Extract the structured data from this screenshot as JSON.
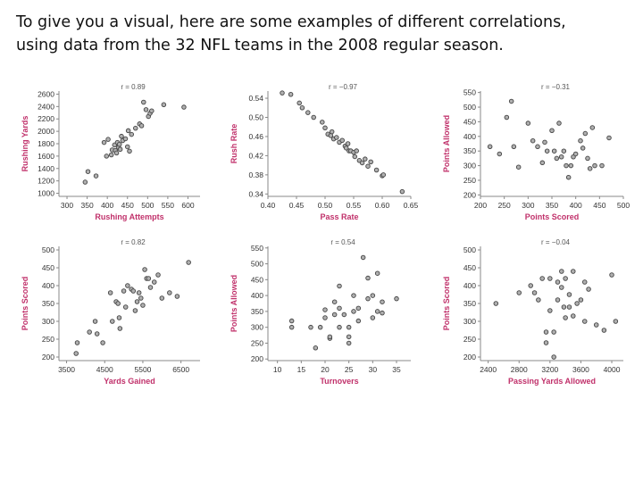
{
  "slide": {
    "intro_line1": "To give you a visual, here are some examples of different correlations,",
    "intro_line2": "using data from the 32 NFL teams in the 2008 regular season."
  },
  "colors": {
    "axis_label": "#c0306a",
    "tick": "#333333",
    "point_fill": "#b0b0b0",
    "point_stroke": "#444444"
  },
  "chart_data": [
    {
      "type": "scatter",
      "annotation": "r = 0.89",
      "xlabel": "Rushing Attempts",
      "ylabel": "Rushing Yards",
      "xlim": [
        280,
        630
      ],
      "ylim": [
        950,
        2650
      ],
      "xticks": [
        "300",
        "350",
        "400",
        "450",
        "500",
        "550",
        "600"
      ],
      "yticks": [
        "1000",
        "1200",
        "1400",
        "1600",
        "1800",
        "2000",
        "2200",
        "2400",
        "2600"
      ],
      "x": [
        345,
        352,
        372,
        392,
        398,
        402,
        410,
        412,
        418,
        420,
        423,
        425,
        428,
        430,
        432,
        435,
        438,
        445,
        450,
        452,
        455,
        460,
        470,
        480,
        485,
        490,
        496,
        502,
        506,
        510,
        540,
        590
      ],
      "y": [
        1180,
        1350,
        1280,
        1820,
        1600,
        1870,
        1620,
        1700,
        1780,
        1690,
        1650,
        1820,
        1740,
        1790,
        1710,
        1920,
        1850,
        1880,
        1750,
        2010,
        1680,
        1950,
        2050,
        2120,
        2090,
        2470,
        2350,
        2240,
        2290,
        2330,
        2430,
        2390
      ]
    },
    {
      "type": "scatter",
      "annotation": "r = −0.97",
      "xlabel": "Pass Rate",
      "ylabel": "Rush Rate",
      "xlim": [
        0.4,
        0.65
      ],
      "ylim": [
        0.335,
        0.555
      ],
      "xticks": [
        "0.40",
        "0.45",
        "0.50",
        "0.55",
        "0.60",
        "0.65"
      ],
      "yticks": [
        "0.34",
        "0.38",
        "0.42",
        "0.46",
        "0.50",
        "0.54"
      ],
      "x": [
        0.425,
        0.44,
        0.455,
        0.46,
        0.47,
        0.48,
        0.495,
        0.5,
        0.505,
        0.51,
        0.512,
        0.515,
        0.52,
        0.525,
        0.53,
        0.535,
        0.537,
        0.54,
        0.542,
        0.545,
        0.55,
        0.552,
        0.555,
        0.56,
        0.565,
        0.57,
        0.575,
        0.58,
        0.59,
        0.6,
        0.602,
        0.635
      ],
      "y": [
        0.551,
        0.548,
        0.53,
        0.52,
        0.51,
        0.5,
        0.49,
        0.478,
        0.465,
        0.462,
        0.47,
        0.455,
        0.458,
        0.448,
        0.452,
        0.44,
        0.436,
        0.445,
        0.43,
        0.43,
        0.427,
        0.418,
        0.43,
        0.41,
        0.405,
        0.413,
        0.398,
        0.407,
        0.39,
        0.378,
        0.38,
        0.345
      ]
    },
    {
      "type": "scatter",
      "annotation": "r = −0.31",
      "xlabel": "Points Scored",
      "ylabel": "Points Allowed",
      "xlim": [
        200,
        500
      ],
      "ylim": [
        195,
        555
      ],
      "xticks": [
        "200",
        "250",
        "300",
        "350",
        "400",
        "450",
        "500"
      ],
      "yticks": [
        "200",
        "250",
        "300",
        "350",
        "400",
        "450",
        "500",
        "550"
      ],
      "x": [
        220,
        240,
        255,
        265,
        270,
        280,
        300,
        310,
        320,
        330,
        335,
        340,
        350,
        355,
        360,
        365,
        370,
        375,
        380,
        385,
        390,
        395,
        400,
        410,
        415,
        420,
        425,
        430,
        435,
        440,
        455,
        470
      ],
      "y": [
        365,
        340,
        465,
        520,
        365,
        295,
        445,
        385,
        365,
        310,
        380,
        350,
        420,
        350,
        325,
        445,
        330,
        350,
        300,
        260,
        300,
        330,
        340,
        385,
        360,
        410,
        325,
        290,
        430,
        300,
        300,
        395
      ]
    },
    {
      "type": "scatter",
      "annotation": "r = 0.82",
      "xlabel": "Yards Gained",
      "ylabel": "Points Scored",
      "xlim": [
        3300,
        7000
      ],
      "ylim": [
        190,
        510
      ],
      "xticks": [
        "3500",
        "4500",
        "5500",
        "6500"
      ],
      "yticks": [
        "200",
        "250",
        "300",
        "350",
        "400",
        "450",
        "500"
      ],
      "x": [
        3750,
        3780,
        4100,
        4250,
        4300,
        4450,
        4650,
        4700,
        4800,
        4850,
        4880,
        4900,
        5000,
        5050,
        5100,
        5200,
        5250,
        5300,
        5350,
        5400,
        5450,
        5500,
        5550,
        5600,
        5650,
        5700,
        5800,
        5900,
        6000,
        6200,
        6400,
        6700
      ],
      "y": [
        210,
        240,
        270,
        300,
        265,
        240,
        380,
        300,
        355,
        350,
        310,
        280,
        385,
        340,
        400,
        390,
        385,
        330,
        355,
        380,
        365,
        345,
        445,
        420,
        420,
        395,
        410,
        430,
        365,
        380,
        370,
        465
      ]
    },
    {
      "type": "scatter",
      "annotation": "r = 0.54",
      "xlabel": "Turnovers",
      "ylabel": "Points Allowed",
      "xlim": [
        8,
        38
      ],
      "ylim": [
        195,
        555
      ],
      "xticks": [
        "10",
        "15",
        "20",
        "25",
        "30",
        "35"
      ],
      "yticks": [
        "200",
        "250",
        "300",
        "350",
        "400",
        "450",
        "500",
        "550"
      ],
      "x": [
        13,
        13,
        17,
        18,
        19,
        20,
        20,
        21,
        21,
        22,
        22,
        23,
        23,
        23,
        24,
        25,
        25,
        25,
        26,
        26,
        27,
        27,
        28,
        29,
        29,
        30,
        30,
        31,
        31,
        32,
        32,
        35
      ],
      "y": [
        320,
        300,
        300,
        235,
        300,
        355,
        330,
        265,
        270,
        380,
        340,
        360,
        300,
        430,
        340,
        250,
        300,
        270,
        350,
        400,
        320,
        360,
        520,
        390,
        455,
        330,
        400,
        350,
        470,
        345,
        380,
        390
      ]
    },
    {
      "type": "scatter",
      "annotation": "r = −0.04",
      "xlabel": "Passing Yards Allowed",
      "ylabel": "Points Scored",
      "xlim": [
        2300,
        4150
      ],
      "ylim": [
        190,
        510
      ],
      "xticks": [
        "2400",
        "2800",
        "3200",
        "3600",
        "4000"
      ],
      "yticks": [
        "200",
        "250",
        "300",
        "350",
        "400",
        "450",
        "500"
      ],
      "x": [
        2500,
        2800,
        2950,
        3000,
        3050,
        3100,
        3150,
        3150,
        3200,
        3200,
        3250,
        3250,
        3300,
        3300,
        3350,
        3350,
        3380,
        3400,
        3400,
        3450,
        3450,
        3500,
        3500,
        3550,
        3600,
        3650,
        3650,
        3700,
        3800,
        3900,
        4000,
        4050
      ],
      "y": [
        350,
        380,
        400,
        380,
        360,
        420,
        240,
        270,
        420,
        330,
        200,
        270,
        410,
        360,
        440,
        395,
        340,
        420,
        310,
        375,
        340,
        440,
        315,
        350,
        360,
        410,
        300,
        390,
        290,
        275,
        430,
        300
      ]
    }
  ]
}
